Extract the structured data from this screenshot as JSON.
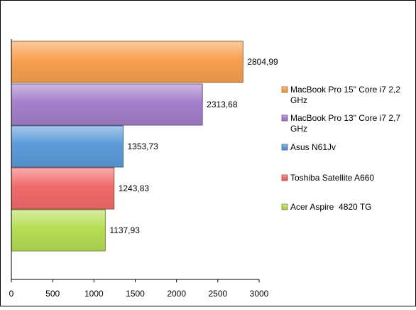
{
  "chart_data": {
    "type": "bar",
    "orientation": "horizontal",
    "xlim": [
      0,
      3000
    ],
    "ticks": [
      0,
      500,
      1000,
      1500,
      2000,
      2500,
      3000
    ],
    "tick_labels": [
      "0",
      "500",
      "1000",
      "1500",
      "2000",
      "2500",
      "3000"
    ],
    "grid": false,
    "legend_position": "right",
    "series": [
      {
        "name": "MacBook Pro 15\" Core i7 2,2 GHz",
        "legend_lines": [
          "MacBook Pro 15\" Core i7 2,2",
          "GHz"
        ],
        "value": 2804.99,
        "label": "2804,99",
        "color": "#F7A04F"
      },
      {
        "name": "MacBook Pro 13\" Core i7 2,7 GHz",
        "legend_lines": [
          "MacBook Pro 13\" Core i7 2,7",
          "GHz"
        ],
        "value": 2313.68,
        "label": "2313,68",
        "color": "#A57FCB"
      },
      {
        "name": "Asus N61Jv",
        "legend_lines": [
          "Asus N61Jv"
        ],
        "value": 1353.73,
        "label": "1353,73",
        "color": "#5B9BD9"
      },
      {
        "name": "Toshiba Satellite A660",
        "legend_lines": [
          "Toshiba Satellite A660"
        ],
        "value": 1243.83,
        "label": "1243,83",
        "color": "#F26A6B"
      },
      {
        "name": "Acer Aspire  4820 TG",
        "legend_lines": [
          "Acer Aspire  4820 TG"
        ],
        "value": 1137.93,
        "label": "1137,93",
        "color": "#B6DE55"
      }
    ]
  }
}
